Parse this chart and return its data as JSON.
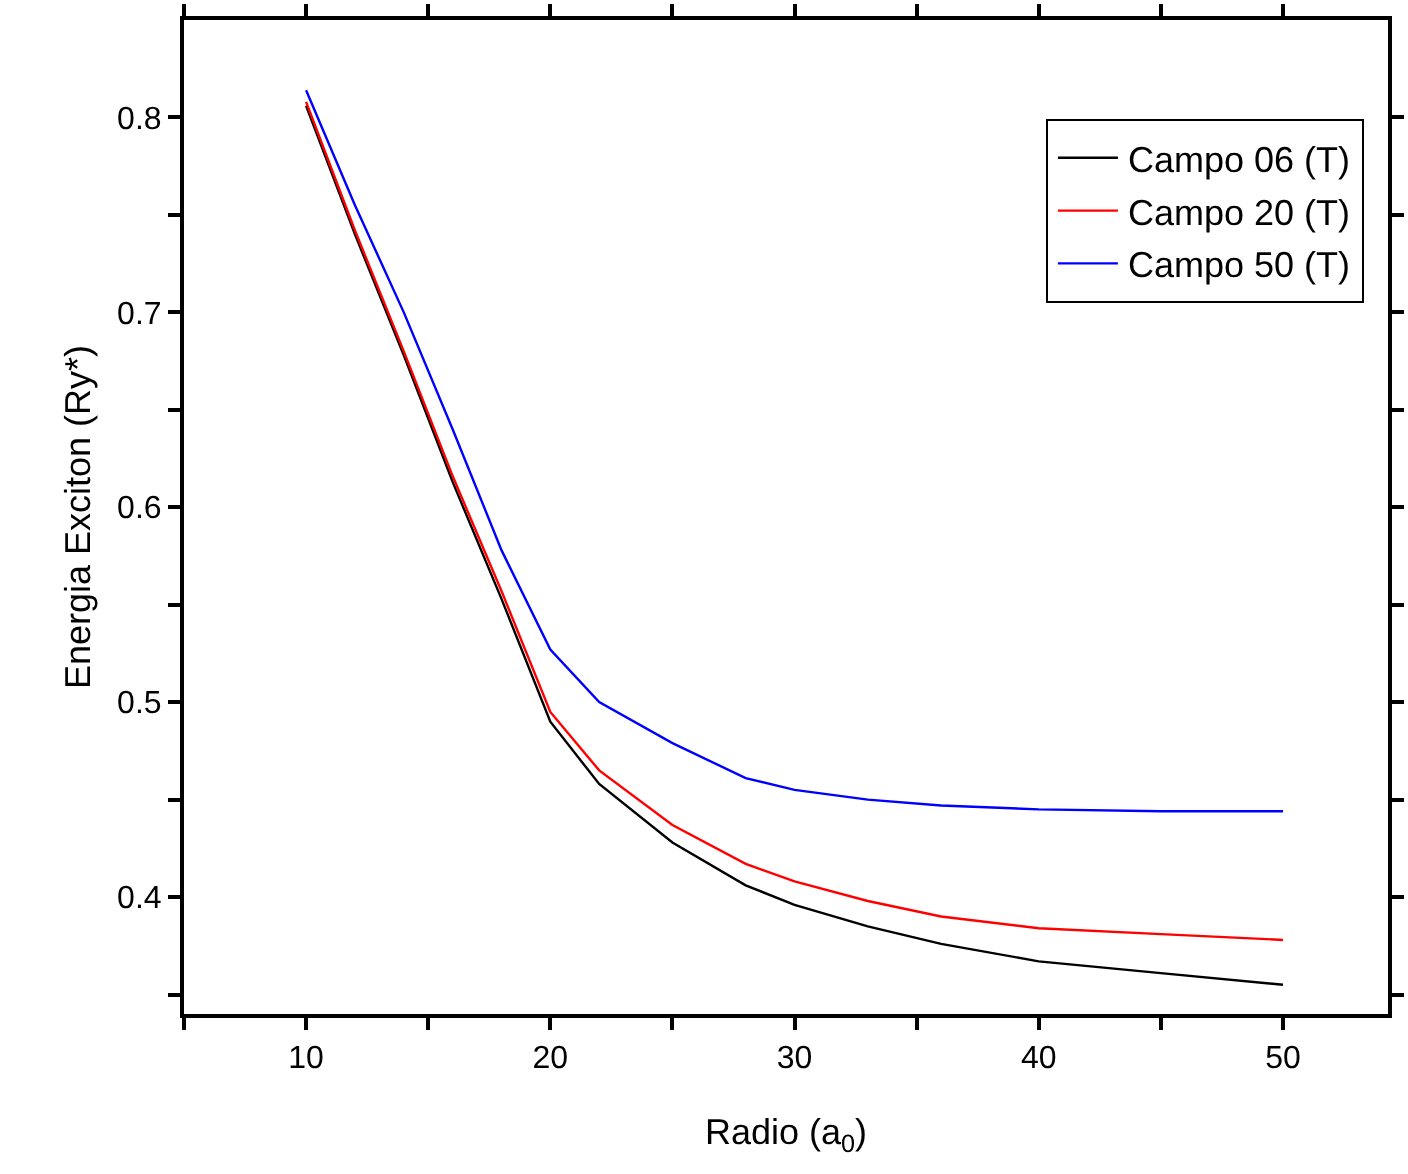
{
  "chart_data": {
    "type": "line",
    "xlabel": "Radio (a$_{0}$)",
    "ylabel": "Energia Exciton (Ry*)",
    "x": [
      10,
      12,
      14,
      16,
      18,
      20,
      22,
      25,
      28,
      30,
      33,
      36,
      40,
      45,
      50
    ],
    "series": [
      {
        "name": "Campo 06 (T)",
        "color": "#000000",
        "values": [
          0.806,
          0.74,
          0.678,
          0.613,
          0.553,
          0.49,
          0.458,
          0.428,
          0.406,
          0.396,
          0.385,
          0.376,
          0.367,
          0.361,
          0.355
        ]
      },
      {
        "name": "Campo 20 (T)",
        "color": "#ff0000",
        "values": [
          0.808,
          0.742,
          0.68,
          0.616,
          0.557,
          0.495,
          0.465,
          0.437,
          0.417,
          0.408,
          0.398,
          0.39,
          0.384,
          0.381,
          0.378
        ]
      },
      {
        "name": "Campo 50 (T)",
        "color": "#0000ff",
        "values": [
          0.814,
          0.755,
          0.7,
          0.64,
          0.578,
          0.527,
          0.5,
          0.479,
          0.461,
          0.455,
          0.45,
          0.447,
          0.445,
          0.444,
          0.444
        ]
      }
    ],
    "xlim": [
      5,
      54.3
    ],
    "ylim": [
      0.34,
      0.85
    ],
    "xticks": [
      {
        "value": 5,
        "label": null
      },
      10,
      {
        "value": 15,
        "label": null
      },
      20,
      {
        "value": 25,
        "label": null
      },
      30,
      {
        "value": 35,
        "label": null
      },
      40,
      {
        "value": 45,
        "label": null
      },
      50
    ],
    "yticks": [
      {
        "value": 0.35,
        "label": null
      },
      0.4,
      {
        "value": 0.45,
        "label": null
      },
      0.5,
      {
        "value": 0.55,
        "label": null
      },
      0.6,
      {
        "value": 0.65,
        "label": null
      },
      0.7,
      {
        "value": 0.75,
        "label": null
      },
      0.8
    ],
    "legend": "top right",
    "grid": false,
    "marker": "none",
    "line_style": "solid"
  }
}
